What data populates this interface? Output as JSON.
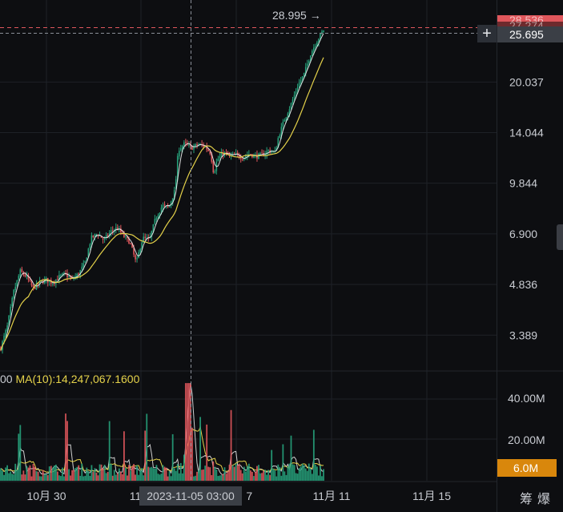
{
  "chart_data": {
    "type": "candlestick",
    "price_axis": {
      "scale": "log",
      "ticks": [
        "20.037",
        "14.044",
        "9.844",
        "6.900",
        "4.836",
        "3.389"
      ],
      "current_price": "25.695",
      "top_badge": "28.536",
      "hidden_badge": "27.274"
    },
    "last_price_marker": "28.995 →",
    "volume_axis": {
      "ticks": [
        "40.00M",
        "20.00M"
      ],
      "current_volume_badge": "6.0M"
    },
    "x_ticks": [
      "10月 30",
      "11月",
      "11月 7",
      "11月 11",
      "11月 15"
    ],
    "crosshair_time": "2023-11-05 03:00",
    "ma_label_prefix": "00",
    "ma_label": "MA(10):14,247,067.1600",
    "colors": {
      "up": "#26a17b",
      "down": "#e0575c",
      "ma_fast": "#ffffff",
      "ma_slow": "#e5d24a",
      "badge_red": "#e0575c",
      "badge_gray": "#3b3f46",
      "badge_orange": "#d9870c",
      "grid": "#1e2127"
    },
    "price_path": [
      [
        0,
        3.1
      ],
      [
        0.02,
        3.6
      ],
      [
        0.04,
        4.6
      ],
      [
        0.06,
        5.3
      ],
      [
        0.08,
        5.1
      ],
      [
        0.1,
        4.7
      ],
      [
        0.12,
        4.9
      ],
      [
        0.14,
        5.0
      ],
      [
        0.16,
        4.9
      ],
      [
        0.18,
        5.1
      ],
      [
        0.2,
        5.2
      ],
      [
        0.22,
        5.0
      ],
      [
        0.24,
        5.2
      ],
      [
        0.26,
        5.6
      ],
      [
        0.28,
        6.7
      ],
      [
        0.3,
        6.9
      ],
      [
        0.32,
        6.6
      ],
      [
        0.34,
        7.0
      ],
      [
        0.36,
        7.2
      ],
      [
        0.38,
        6.8
      ],
      [
        0.4,
        6.5
      ],
      [
        0.42,
        5.6
      ],
      [
        0.43,
        6.2
      ],
      [
        0.44,
        6.7
      ],
      [
        0.46,
        6.6
      ],
      [
        0.48,
        7.7
      ],
      [
        0.5,
        8.4
      ],
      [
        0.52,
        8.3
      ],
      [
        0.54,
        9.4
      ],
      [
        0.55,
        12.5
      ],
      [
        0.57,
        13.0
      ],
      [
        0.59,
        12.6
      ],
      [
        0.61,
        12.9
      ],
      [
        0.63,
        12.8
      ],
      [
        0.65,
        12.2
      ],
      [
        0.66,
        10.5
      ],
      [
        0.67,
        11.6
      ],
      [
        0.69,
        12.2
      ],
      [
        0.71,
        11.9
      ],
      [
        0.73,
        12.0
      ],
      [
        0.75,
        11.8
      ],
      [
        0.77,
        12.1
      ],
      [
        0.79,
        11.9
      ],
      [
        0.81,
        12.0
      ],
      [
        0.83,
        12.4
      ],
      [
        0.85,
        12.2
      ],
      [
        0.86,
        13.6
      ],
      [
        0.88,
        15.5
      ],
      [
        0.9,
        17.2
      ],
      [
        0.92,
        19.5
      ],
      [
        0.94,
        21.2
      ],
      [
        0.96,
        24.5
      ],
      [
        0.98,
        26.8
      ],
      [
        1.0,
        28.9
      ]
    ]
  }
}
